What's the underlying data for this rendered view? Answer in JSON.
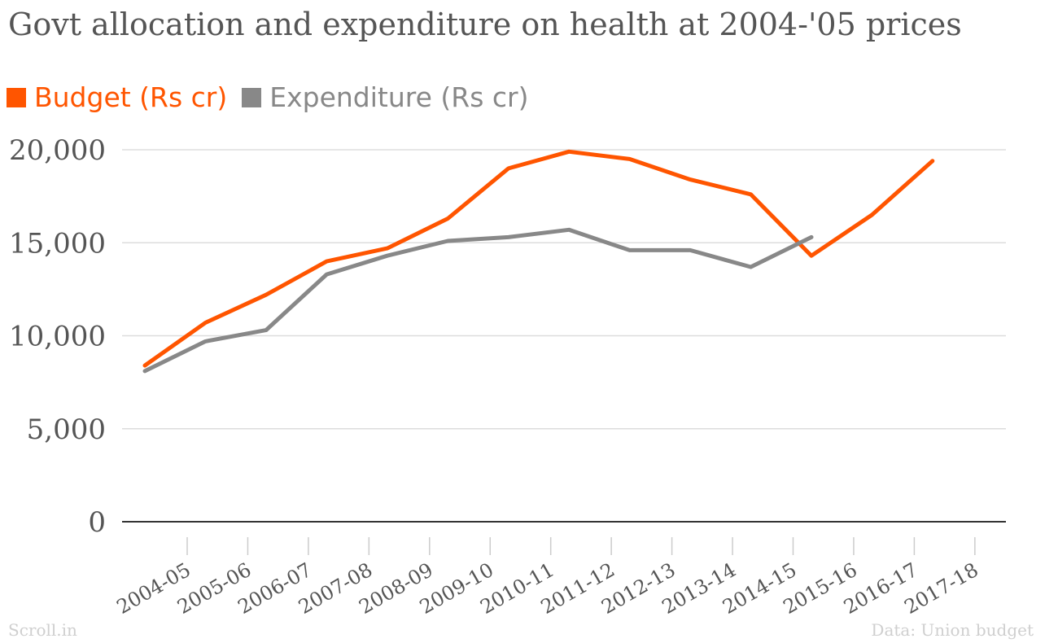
{
  "chart_data": {
    "type": "line",
    "title": "Govt allocation and expenditure on health at 2004-'05 prices",
    "categories": [
      "2004-05",
      "2005-06",
      "2006-07",
      "2007-08",
      "2008-09",
      "2009-10",
      "2010-11",
      "2011-12",
      "2012-13",
      "2013-14",
      "2014-15",
      "2015-16",
      "2016-17",
      "2017-18"
    ],
    "series": [
      {
        "name": "Budget (Rs cr)",
        "color": "#ff5500",
        "values": [
          8400,
          10700,
          12200,
          14000,
          14700,
          16300,
          19000,
          19900,
          19500,
          18400,
          17600,
          14300,
          16500,
          19400
        ]
      },
      {
        "name": "Expenditure (Rs cr)",
        "color": "#888888",
        "values": [
          8100,
          9700,
          10300,
          13300,
          14300,
          15100,
          15300,
          15700,
          14600,
          14600,
          13700,
          15300,
          null,
          null
        ]
      }
    ],
    "y_ticks": [
      "0",
      "5,000",
      "10,000",
      "15,000",
      "20,000"
    ],
    "y_tick_values": [
      0,
      5000,
      10000,
      15000,
      20000
    ],
    "ylim": [
      0,
      20000
    ],
    "grid": true,
    "legend_position": "top-left",
    "xlabel": "",
    "ylabel": ""
  },
  "footer": {
    "source_credit": "Scroll.in",
    "data_source": "Data: Union budget"
  }
}
